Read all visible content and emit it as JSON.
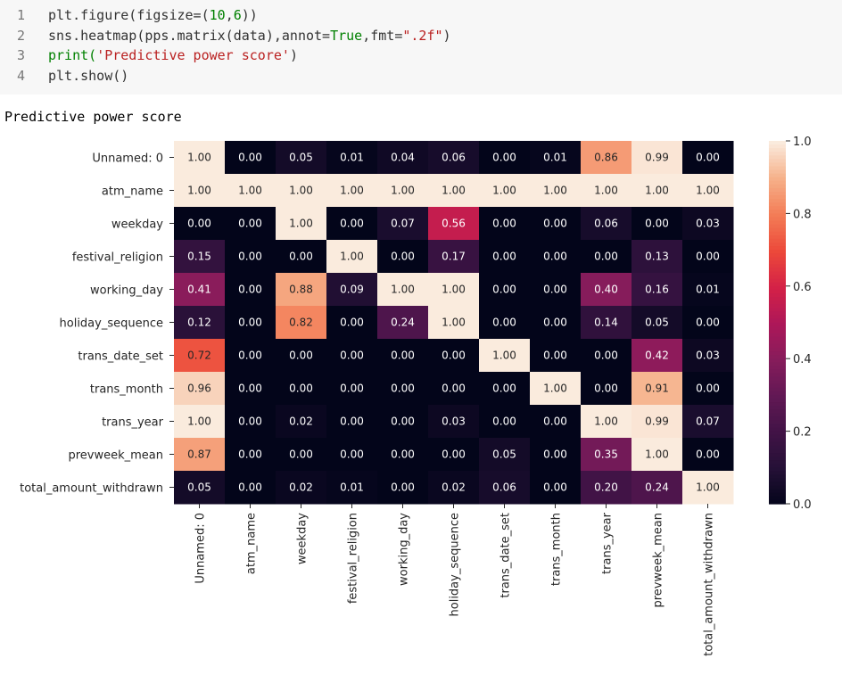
{
  "code": {
    "lines": [
      {
        "n": "1",
        "tokens": [
          {
            "t": "plt.figure(figsize=(",
            "c": ""
          },
          {
            "t": "10",
            "c": "tk-num"
          },
          {
            "t": ",",
            "c": ""
          },
          {
            "t": "6",
            "c": "tk-num"
          },
          {
            "t": "))",
            "c": ""
          }
        ]
      },
      {
        "n": "2",
        "tokens": [
          {
            "t": "sns.heatmap(pps.matrix(data),annot=",
            "c": ""
          },
          {
            "t": "True",
            "c": "tk-kw"
          },
          {
            "t": ",fmt=",
            "c": ""
          },
          {
            "t": "\".2f\"",
            "c": "tk-str"
          },
          {
            "t": ")",
            "c": ""
          }
        ]
      },
      {
        "n": "3",
        "tokens": [
          {
            "t": "print(",
            "c": "tk-kw"
          },
          {
            "t": "'Predictive power score'",
            "c": "tk-str"
          },
          {
            "t": ")",
            "c": ""
          }
        ]
      },
      {
        "n": "4",
        "tokens": [
          {
            "t": "plt.show()",
            "c": ""
          }
        ]
      }
    ]
  },
  "output": {
    "text": "Predictive power score"
  },
  "chart_data": {
    "type": "heatmap",
    "rows": [
      "Unnamed: 0",
      "atm_name",
      "weekday",
      "festival_religion",
      "working_day",
      "holiday_sequence",
      "trans_date_set",
      "trans_month",
      "trans_year",
      "prevweek_mean",
      "total_amount_withdrawn"
    ],
    "cols": [
      "Unnamed: 0",
      "atm_name",
      "weekday",
      "festival_religion",
      "working_day",
      "holiday_sequence",
      "trans_date_set",
      "trans_month",
      "trans_year",
      "prevweek_mean",
      "total_amount_withdrawn"
    ],
    "values": [
      [
        1.0,
        0.0,
        0.05,
        0.01,
        0.04,
        0.06,
        0.0,
        0.01,
        0.86,
        0.99,
        0.0
      ],
      [
        1.0,
        1.0,
        1.0,
        1.0,
        1.0,
        1.0,
        1.0,
        1.0,
        1.0,
        1.0,
        1.0
      ],
      [
        0.0,
        0.0,
        1.0,
        0.0,
        0.07,
        0.56,
        0.0,
        0.0,
        0.06,
        0.0,
        0.03
      ],
      [
        0.15,
        0.0,
        0.0,
        1.0,
        0.0,
        0.17,
        0.0,
        0.0,
        0.0,
        0.13,
        0.0
      ],
      [
        0.41,
        0.0,
        0.88,
        0.09,
        1.0,
        1.0,
        0.0,
        0.0,
        0.4,
        0.16,
        0.01
      ],
      [
        0.12,
        0.0,
        0.82,
        0.0,
        0.24,
        1.0,
        0.0,
        0.0,
        0.14,
        0.05,
        0.0
      ],
      [
        0.72,
        0.0,
        0.0,
        0.0,
        0.0,
        0.0,
        1.0,
        0.0,
        0.0,
        0.42,
        0.03
      ],
      [
        0.96,
        0.0,
        0.0,
        0.0,
        0.0,
        0.0,
        0.0,
        1.0,
        0.0,
        0.91,
        0.0
      ],
      [
        1.0,
        0.0,
        0.02,
        0.0,
        0.0,
        0.03,
        0.0,
        0.0,
        1.0,
        0.99,
        0.07
      ],
      [
        0.87,
        0.0,
        0.0,
        0.0,
        0.0,
        0.0,
        0.05,
        0.0,
        0.35,
        1.0,
        0.0
      ],
      [
        0.05,
        0.0,
        0.02,
        0.01,
        0.0,
        0.02,
        0.06,
        0.0,
        0.2,
        0.24,
        1.0
      ]
    ],
    "annotation_format": ".2f",
    "colormap": "rocket",
    "colorbar": {
      "ticks": [
        0.0,
        0.2,
        0.4,
        0.6,
        0.8,
        1.0
      ],
      "tick_labels": [
        "0.0",
        "0.2",
        "0.4",
        "0.6",
        "0.8",
        "1.0"
      ],
      "range": [
        0,
        1
      ]
    },
    "title": "",
    "xlabel": "",
    "ylabel": ""
  }
}
